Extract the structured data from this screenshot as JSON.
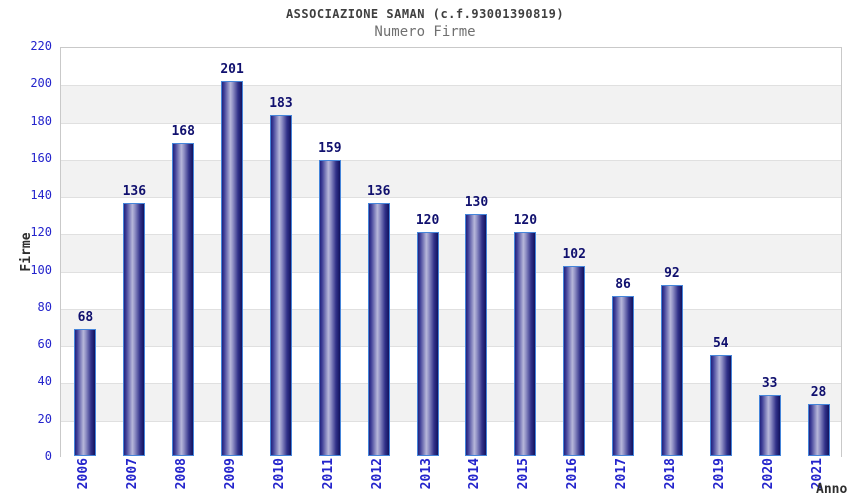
{
  "chart_data": {
    "type": "bar",
    "title": "ASSOCIAZIONE SAMAN (c.f.93001390819)",
    "subtitle": "Numero Firme",
    "xlabel": "Anno",
    "ylabel": "Firme",
    "categories": [
      "2006",
      "2007",
      "2008",
      "2009",
      "2010",
      "2011",
      "2012",
      "2013",
      "2014",
      "2015",
      "2016",
      "2017",
      "2018",
      "2019",
      "2020",
      "2021"
    ],
    "values": [
      68,
      136,
      168,
      201,
      183,
      159,
      136,
      120,
      130,
      120,
      102,
      86,
      92,
      54,
      33,
      28
    ],
    "ylim": [
      0,
      220
    ],
    "ytick_step": 20,
    "yticks": [
      0,
      20,
      40,
      60,
      80,
      100,
      120,
      140,
      160,
      180,
      200,
      220
    ],
    "grid": "horizontal-bands",
    "legend": "none",
    "bar_value_labels_shown": true,
    "colors": {
      "background": "#ffffff",
      "band_alt": "#f2f2f2",
      "band_main": "#ffffff",
      "gridline": "#e0e0e0",
      "plot_border": "#c9c9c9",
      "bar_border": "#4585da",
      "bar_gradient_dark": "#23237d",
      "bar_gradient_light": "#b7b7da",
      "bar_gradient_edge": "#12125e",
      "tick_label": "#2424cc",
      "value_label": "#10106e",
      "title": "#3f3f3f",
      "subtitle": "#707070",
      "axis_title": "#2e2e2e"
    }
  }
}
